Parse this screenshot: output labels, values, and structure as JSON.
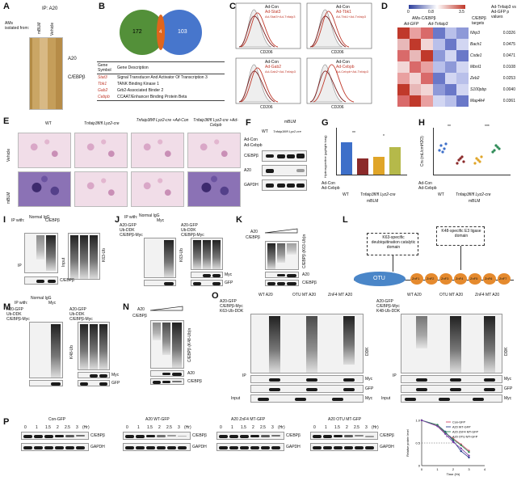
{
  "panels": {
    "A": {
      "label": "A",
      "ip": "IP: A20",
      "ams": "AMs\nisolated from:",
      "lanes": [
        "mBLM",
        "Vehicle"
      ],
      "marks": [
        "A20",
        "C/EBPβ"
      ]
    },
    "B": {
      "label": "B",
      "venn_left": "172",
      "venn_mid": "4",
      "venn_right": "103",
      "table_headers": [
        "Gene Symbol",
        "Gene Description"
      ],
      "table_rows": [
        [
          "Stat3",
          "Signal Transducer And Activator Of Transcription 3"
        ],
        [
          "Tbk1",
          "TANK Binding Kinase 1"
        ],
        [
          "Gab2",
          "Grb2-Associated Binder 2"
        ],
        [
          "Cebpb",
          "CCAAT/Enhancer Binding Protein Beta"
        ]
      ]
    },
    "C": {
      "label": "C",
      "x_axis": "CD206",
      "legends": [
        [
          "Ad-Con",
          "Ad-Stat3",
          "Ad-Stat3+Ad-Tnfaip3"
        ],
        [
          "Ad-Con",
          "Ad-Tbk1",
          "Ad-Tbk1+Ad-Tnfaip3"
        ],
        [
          "Ad-Con",
          "Ad-Gab2",
          "Ad-Gab2+Ad-Tnfaip3"
        ],
        [
          "Ad-Con",
          "Ad-Cebpb",
          "Ad-Cebpb+Ad-Tnfaip3"
        ]
      ]
    },
    "D": {
      "label": "D",
      "scale_min": "0",
      "scale_mid": "0.8",
      "scale_max": "3.5",
      "group_label": "AMs-C/EBPβ",
      "col_labels": [
        "Ad-GFP",
        "Ad-Tnfaip3"
      ],
      "right_header_1": "C/EBPβ targets",
      "right_header_2": "Ad-Tnfaip3 vs Ad-GFP p values",
      "rows": [
        {
          "gene": "Nlrp3",
          "p": "0.0326"
        },
        {
          "gene": "Bach1",
          "p": "0.0475"
        },
        {
          "gene": "Csde1",
          "p": "0.0471"
        },
        {
          "gene": "Mbnl1",
          "p": "0.0108"
        },
        {
          "gene": "Zeb2",
          "p": "0.0253"
        },
        {
          "gene": "S100pbp",
          "p": "0.0040"
        },
        {
          "gene": "Map4k4",
          "p": "0.0361"
        }
      ]
    },
    "E": {
      "label": "E",
      "cols": [
        "WT",
        "Tnfaip3fl/fl Lyz2-cre",
        "Tnfaip3fl/fl Lyz2-cre +Ad-Con",
        "Tnfaip3fl/fl Lyz2-cre +Ad-Cebpb"
      ],
      "rows": [
        "Vehicle",
        "mBLM"
      ]
    },
    "F": {
      "label": "F",
      "top": "mBLM",
      "groups": [
        "WT",
        "Tnfaip3fl/fl Lyz2-cre"
      ],
      "rowlabels": [
        "Ad-Con",
        "Ad-Cebpb"
      ],
      "bands": [
        "C/EBPβ",
        "A20",
        "GAPDH"
      ]
    },
    "G": {
      "label": "G",
      "ylabel": "Hydroxyproline (µg/right lung)",
      "sig1": "**",
      "sig2": "*",
      "rowlabels": [
        "Ad-Con",
        "Ad-Cebpb"
      ],
      "groups": [
        "WT",
        "Tnfaip3fl/fl Lyz2-cre"
      ],
      "bottom": "mBLM"
    },
    "H": {
      "label": "H",
      "ylabel": "Crs (mL/cmH2O)",
      "sig1": "**",
      "sig2": "***",
      "rowlabels": [
        "Ad-Con",
        "Ad-Cebpb"
      ],
      "groups": [
        "WT",
        "Tnfaip3fl/fl Lyz2-cre"
      ],
      "bottom": "mBLM"
    },
    "I": {
      "label": "I",
      "ipwith": "IP with:",
      "ip_options": [
        "Normal IgG",
        "C/EBPβ"
      ],
      "lanes": [
        "Vehicle",
        "Vehicle",
        "mBLM"
      ],
      "lanes2": [
        "Vehicle",
        "Vehicle",
        "mBLM"
      ],
      "side": "K63-Ub",
      "ip": "IP",
      "input": "Input",
      "bands": [
        "C/EBPβ"
      ]
    },
    "J": {
      "label": "J",
      "ipwith": "IP with:",
      "ip_options": [
        "Normal IgG",
        "Myc"
      ],
      "rows": [
        "A20-GFP",
        "Ub-DDK",
        "C/EBPβ-Myc"
      ],
      "side": "K63-Ub",
      "bands": [
        "Myc",
        "GFP"
      ]
    },
    "K": {
      "label": "K",
      "rows": [
        "A20",
        "C/EBPβ"
      ],
      "side": "C/EBPβ (K63-Ub)n",
      "bands": [
        "A20",
        "C/EBPβ"
      ]
    },
    "L": {
      "label": "L",
      "box1": "K63-specific deubiquitination catalytic domain",
      "box2": "K48-specific E3 ligase domain",
      "otu": "OTU",
      "znf": [
        "ZnF1",
        "ZnF2",
        "ZnF3",
        "ZnF4",
        "ZnF5",
        "ZnF6",
        "ZnF7"
      ]
    },
    "M": {
      "label": "M",
      "ipwith": "IP with:",
      "ip_options": [
        "Normal IgG",
        "Myc"
      ],
      "rows": [
        "A20-GFP",
        "Ub-DDK",
        "C/EBPβ-Myc"
      ],
      "side": "K48-Ub",
      "bands": [
        "Myc",
        "GFP"
      ]
    },
    "N": {
      "label": "N",
      "rows": [
        "A20",
        "C/EBPβ"
      ],
      "side": "C/EBPβ (K48-Ub)n",
      "bands": [
        "A20",
        "C/EBPβ"
      ]
    },
    "O": {
      "label": "O",
      "groups": [
        "WT A20",
        "OTU MT A20",
        "ZnF4 MT A20",
        "WT A20",
        "OTU MT A20",
        "ZnF4 MT A20"
      ],
      "rows_left": [
        "A20-GFP",
        "C/EBPβ-Myc",
        "K63-Ub-DDK"
      ],
      "rows_right": [
        "A20-GFP",
        "C/EBPβ-Myc",
        "K48-Ub-DDK"
      ],
      "bands": [
        "DDK",
        "Myc",
        "GFP",
        "Myc"
      ],
      "ip": "IP",
      "input": "Input"
    },
    "P": {
      "label": "P",
      "blots": [
        {
          "title": "Con-GFP",
          "times": [
            "0",
            "1",
            "1.5",
            "2",
            "2.5",
            "3",
            "(Hr)"
          ],
          "bands": [
            "C/EBPβ",
            "GAPDH"
          ]
        },
        {
          "title": "A20 WT-GFP",
          "times": [
            "0",
            "1",
            "1.5",
            "2",
            "2.5",
            "3",
            "(Hr)"
          ],
          "bands": [
            "C/EBPβ",
            "GAPDH"
          ]
        },
        {
          "title": "A20 ZnF4 MT-GFP",
          "times": [
            "0",
            "1",
            "1.5",
            "2",
            "2.5",
            "3",
            "(Hr)"
          ],
          "bands": [
            "C/EBPβ",
            "GAPDH"
          ]
        },
        {
          "title": "A20 OTU MT-GFP",
          "times": [
            "0",
            "1",
            "1.5",
            "2",
            "2.5",
            "3",
            "(Hr)"
          ],
          "bands": [
            "C/EBPβ",
            "GAPDH"
          ]
        }
      ]
    }
  },
  "chart_data": {
    "type": "line",
    "title": "",
    "xlabel": "Time (Hr)",
    "ylabel": "Relative protein level",
    "xlim": [
      0,
      4
    ],
    "ylim": [
      0,
      1.0
    ],
    "xticks": [
      "0",
      "1",
      "2",
      "3",
      "4"
    ],
    "yticks": [
      "0",
      "0.5",
      "1.0"
    ],
    "legend_position": "top-right",
    "series": [
      {
        "name": "Con-GFP",
        "color": "#d24a6b",
        "x": [
          0,
          1,
          1.5,
          2,
          2.5,
          3
        ],
        "y": [
          1.0,
          0.88,
          0.72,
          0.6,
          0.47,
          0.33
        ]
      },
      {
        "name": "A20 WT-GFP",
        "color": "#2b3f8c",
        "x": [
          0,
          1,
          1.5,
          2,
          2.5,
          3
        ],
        "y": [
          1.0,
          0.9,
          0.75,
          0.55,
          0.32,
          0.18
        ]
      },
      {
        "name": "A20 ZnF4 MT-GFP",
        "color": "#2e8b57",
        "x": [
          0,
          1,
          1.5,
          2,
          2.5,
          3
        ],
        "y": [
          1.0,
          0.9,
          0.73,
          0.58,
          0.45,
          0.3
        ]
      },
      {
        "name": "A20 OTU MT-GFP",
        "color": "#7a3fa6",
        "x": [
          0,
          1,
          1.5,
          2,
          2.5,
          3
        ],
        "y": [
          1.0,
          0.87,
          0.7,
          0.52,
          0.38,
          0.22
        ]
      }
    ]
  }
}
